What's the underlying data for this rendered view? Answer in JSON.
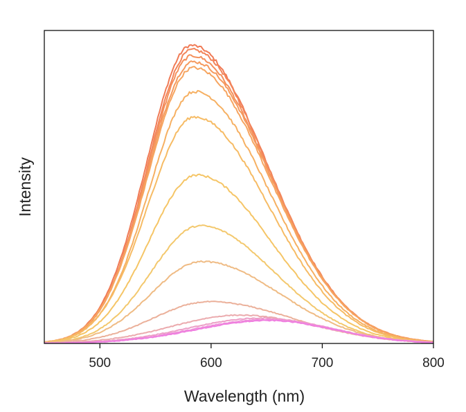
{
  "chart_data": {
    "type": "line",
    "title": "",
    "xlabel": "Wavelength (nm)",
    "ylabel": "Intensity",
    "xlim": [
      450,
      800
    ],
    "ylim": [
      0,
      1.05
    ],
    "x_ticks": [
      500,
      600,
      700,
      800
    ],
    "y_ticks": [],
    "grid": false,
    "legend": "none",
    "curve_model": "asymmetric gaussian emission band",
    "series": [
      {
        "color": "#f07a55",
        "peak_nm": 582,
        "peak_intensity": 1.0,
        "sigma_left_nm": 40,
        "sigma_right_nm": 68
      },
      {
        "color": "#f2855a",
        "peak_nm": 583,
        "peak_intensity": 0.985,
        "sigma_left_nm": 40,
        "sigma_right_nm": 68
      },
      {
        "color": "#f4905c",
        "peak_nm": 583,
        "peak_intensity": 0.965,
        "sigma_left_nm": 40,
        "sigma_right_nm": 68
      },
      {
        "color": "#f59a5e",
        "peak_nm": 584,
        "peak_intensity": 0.945,
        "sigma_left_nm": 41,
        "sigma_right_nm": 68
      },
      {
        "color": "#f6a560",
        "peak_nm": 584,
        "peak_intensity": 0.925,
        "sigma_left_nm": 41,
        "sigma_right_nm": 68
      },
      {
        "color": "#f6b062",
        "peak_nm": 585,
        "peak_intensity": 0.845,
        "sigma_left_nm": 41,
        "sigma_right_nm": 67
      },
      {
        "color": "#f6bb64",
        "peak_nm": 585,
        "peak_intensity": 0.76,
        "sigma_left_nm": 42,
        "sigma_right_nm": 67
      },
      {
        "color": "#f5c566",
        "peak_nm": 587,
        "peak_intensity": 0.565,
        "sigma_left_nm": 43,
        "sigma_right_nm": 67
      },
      {
        "color": "#f3c86d",
        "peak_nm": 590,
        "peak_intensity": 0.395,
        "sigma_left_nm": 44,
        "sigma_right_nm": 67
      },
      {
        "color": "#efbb84",
        "peak_nm": 592,
        "peak_intensity": 0.275,
        "sigma_left_nm": 46,
        "sigma_right_nm": 70
      },
      {
        "color": "#ebb09a",
        "peak_nm": 598,
        "peak_intensity": 0.14,
        "sigma_left_nm": 50,
        "sigma_right_nm": 75
      },
      {
        "color": "#ebaaad",
        "peak_nm": 625,
        "peak_intensity": 0.095,
        "sigma_left_nm": 60,
        "sigma_right_nm": 70
      },
      {
        "color": "#ec9ec6",
        "peak_nm": 645,
        "peak_intensity": 0.085,
        "sigma_left_nm": 65,
        "sigma_right_nm": 62
      },
      {
        "color": "#ee8fd8",
        "peak_nm": 650,
        "peak_intensity": 0.08,
        "sigma_left_nm": 65,
        "sigma_right_nm": 60
      },
      {
        "color": "#ef7fe0",
        "peak_nm": 652,
        "peak_intensity": 0.077,
        "sigma_left_nm": 65,
        "sigma_right_nm": 58
      }
    ]
  }
}
